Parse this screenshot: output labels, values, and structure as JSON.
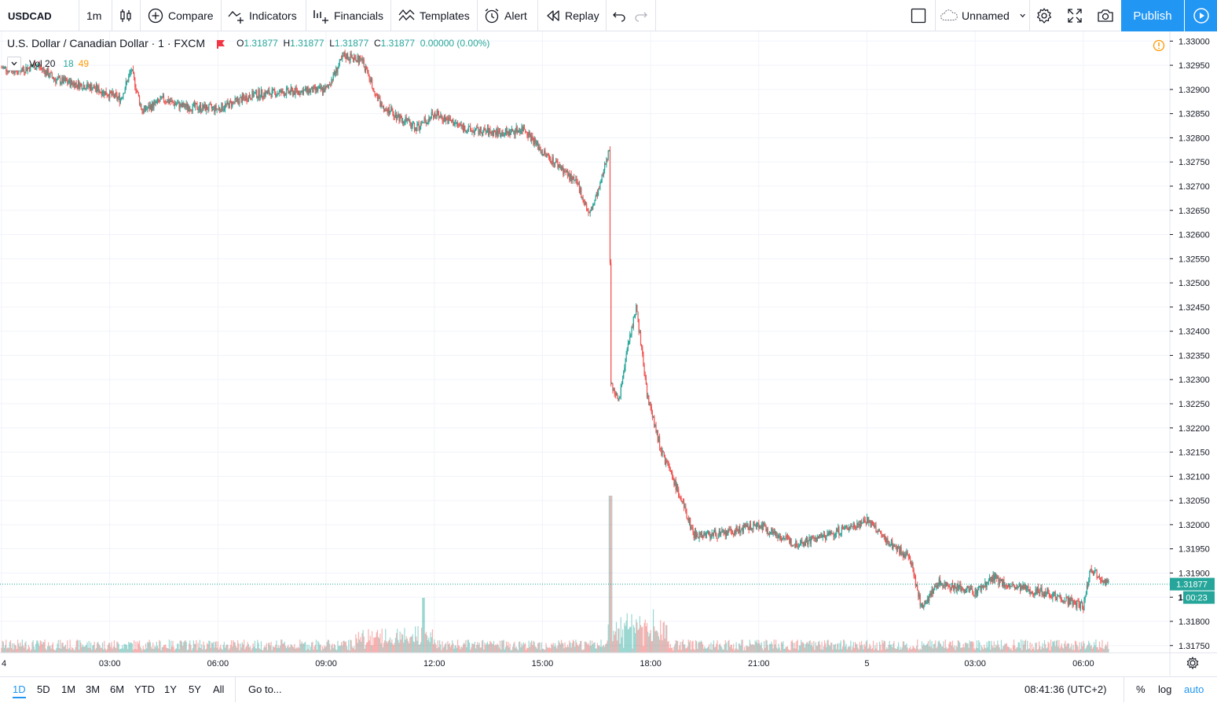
{
  "toolbar": {
    "symbol": "USDCAD",
    "interval": "1m",
    "compare": "Compare",
    "indicators": "Indicators",
    "financials": "Financials",
    "templates": "Templates",
    "alert": "Alert",
    "replay": "Replay",
    "layout_name": "Unnamed",
    "publish": "Publish"
  },
  "legend": {
    "title": "U.S. Dollar / Canadian Dollar · 1 · FXCM",
    "o_label": "O",
    "o_value": "1.31877",
    "h_label": "H",
    "h_value": "1.31877",
    "l_label": "L",
    "l_value": "1.31877",
    "c_label": "C",
    "c_value": "1.31877",
    "change": "0.00000 (0.00%)"
  },
  "volume_legend": {
    "name": "Vol 20",
    "v1": "18",
    "v2": "49"
  },
  "price_scale": {
    "last_price": "1.31877",
    "countdown": "00:23",
    "countdown_prefix": "1"
  },
  "bottom": {
    "ranges": [
      "1D",
      "5D",
      "1M",
      "3M",
      "6M",
      "YTD",
      "1Y",
      "5Y",
      "All"
    ],
    "active_range": "1D",
    "goto": "Go to...",
    "clock": "08:41:36 (UTC+2)",
    "percent": "%",
    "log": "log",
    "auto": "auto"
  },
  "colors": {
    "up": "#26a69a",
    "down": "#ef5350",
    "accent": "#2196f3",
    "grid": "#f0f3fa"
  },
  "chart_data": {
    "type": "candlestick",
    "symbol": "USDCAD",
    "interval": "1 minute",
    "x_ticks": [
      "4",
      "03:00",
      "06:00",
      "09:00",
      "12:00",
      "15:00",
      "18:00",
      "21:00",
      "5",
      "03:00",
      "06:00"
    ],
    "y_ticks": [
      "1.33000",
      "1.32950",
      "1.32900",
      "1.32850",
      "1.32800",
      "1.32750",
      "1.32700",
      "1.32650",
      "1.32600",
      "1.32550",
      "1.32500",
      "1.32450",
      "1.32400",
      "1.32350",
      "1.32300",
      "1.32250",
      "1.32200",
      "1.32150",
      "1.32100",
      "1.32050",
      "1.32000",
      "1.31950",
      "1.31900",
      "1.31850",
      "1.31800",
      "1.31750"
    ],
    "ylim": [
      1.31735,
      1.3302
    ],
    "price_path": [
      {
        "t": 0.0,
        "p": 1.32945
      },
      {
        "t": 0.5,
        "p": 1.3294
      },
      {
        "t": 1.0,
        "p": 1.3295
      },
      {
        "t": 1.5,
        "p": 1.3292
      },
      {
        "t": 2.5,
        "p": 1.32905
      },
      {
        "t": 3.3,
        "p": 1.3288
      },
      {
        "t": 3.6,
        "p": 1.3294
      },
      {
        "t": 3.9,
        "p": 1.32855
      },
      {
        "t": 4.5,
        "p": 1.3288
      },
      {
        "t": 5.0,
        "p": 1.32865
      },
      {
        "t": 6.0,
        "p": 1.3286
      },
      {
        "t": 7.0,
        "p": 1.3289
      },
      {
        "t": 8.0,
        "p": 1.32895
      },
      {
        "t": 9.0,
        "p": 1.329
      },
      {
        "t": 9.5,
        "p": 1.3297
      },
      {
        "t": 10.0,
        "p": 1.3296
      },
      {
        "t": 10.5,
        "p": 1.3287
      },
      {
        "t": 11.5,
        "p": 1.3282
      },
      {
        "t": 12.0,
        "p": 1.3285
      },
      {
        "t": 13.0,
        "p": 1.32815
      },
      {
        "t": 14.0,
        "p": 1.3281
      },
      {
        "t": 14.5,
        "p": 1.3282
      },
      {
        "t": 15.0,
        "p": 1.3277
      },
      {
        "t": 15.5,
        "p": 1.3274
      },
      {
        "t": 16.0,
        "p": 1.327
      },
      {
        "t": 16.3,
        "p": 1.3264
      },
      {
        "t": 16.6,
        "p": 1.327
      },
      {
        "t": 16.85,
        "p": 1.3278
      },
      {
        "t": 16.9,
        "p": 1.323
      },
      {
        "t": 17.1,
        "p": 1.3225
      },
      {
        "t": 17.4,
        "p": 1.3238
      },
      {
        "t": 17.6,
        "p": 1.3245
      },
      {
        "t": 17.9,
        "p": 1.3227
      },
      {
        "t": 18.3,
        "p": 1.3215
      },
      {
        "t": 18.7,
        "p": 1.3208
      },
      {
        "t": 19.2,
        "p": 1.3198
      },
      {
        "t": 20.0,
        "p": 1.3198
      },
      {
        "t": 21.0,
        "p": 1.32
      },
      {
        "t": 22.0,
        "p": 1.3196
      },
      {
        "t": 23.0,
        "p": 1.3198
      },
      {
        "t": 24.0,
        "p": 1.3201
      },
      {
        "t": 24.5,
        "p": 1.3197
      },
      {
        "t": 25.2,
        "p": 1.3193
      },
      {
        "t": 25.5,
        "p": 1.3183
      },
      {
        "t": 26.0,
        "p": 1.3188
      },
      {
        "t": 27.0,
        "p": 1.3186
      },
      {
        "t": 27.5,
        "p": 1.3189
      },
      {
        "t": 28.0,
        "p": 1.3187
      },
      {
        "t": 29.0,
        "p": 1.3186
      },
      {
        "t": 30.0,
        "p": 1.3183
      },
      {
        "t": 30.2,
        "p": 1.3191
      },
      {
        "t": 30.7,
        "p": 1.31877
      }
    ],
    "last_price": 1.31877
  }
}
